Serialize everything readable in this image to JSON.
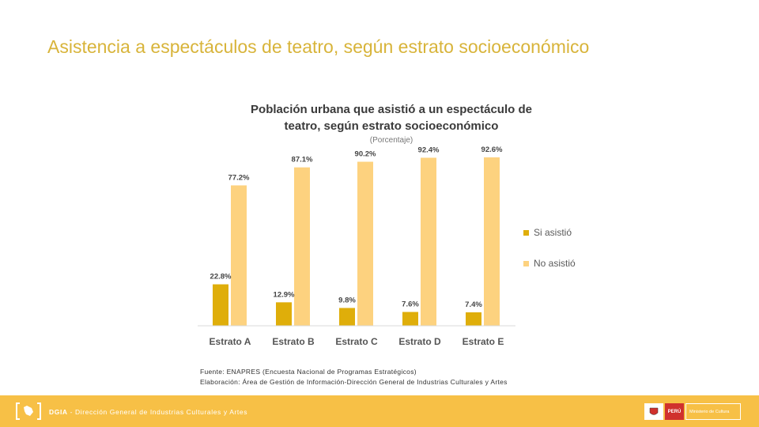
{
  "slide": {
    "title": "Asistencia a espectáculos de teatro, según estrato socioeconómico",
    "source_line1": "Fuente: ENAPRES (Encuesta Nacional de Programas Estratégicos)",
    "source_line2": "Elaboración: Área de Gestión de Información-Dirección General de Industrias Culturales y Artes"
  },
  "footer": {
    "org": "DGIA",
    "separator": " - ",
    "org_full": "Dirección General de Industrias Culturales y Artes",
    "badge_peru": "PERÚ",
    "badge_ministry": "Ministerio de Cultura"
  },
  "colors": {
    "title": "#d8b43a",
    "si_asistio": "#dfae0a",
    "no_asistio": "#fdd27f",
    "footer": "#f7c046"
  },
  "chart_data": {
    "type": "bar",
    "title_line1": "Población urbana que asistió a un espectáculo de",
    "title_line2": "teatro, según estrato socioeconómico",
    "subtitle": "(Porcentaje)",
    "categories": [
      "Estrato A",
      "Estrato B",
      "Estrato C",
      "Estrato D",
      "Estrato E"
    ],
    "series": [
      {
        "name": "Si asistió",
        "values": [
          22.8,
          12.9,
          9.8,
          7.6,
          7.4
        ],
        "labels": [
          "22.8%",
          "12.9%",
          "9.8%",
          "7.6%",
          "7.4%"
        ]
      },
      {
        "name": "No asistió",
        "values": [
          77.2,
          87.1,
          90.2,
          92.4,
          92.6
        ],
        "labels": [
          "77.2%",
          "87.1%",
          "90.2%",
          "92.4%",
          "92.6%"
        ]
      }
    ],
    "ylim": [
      0,
      100
    ],
    "legend": "right",
    "grid": false
  }
}
